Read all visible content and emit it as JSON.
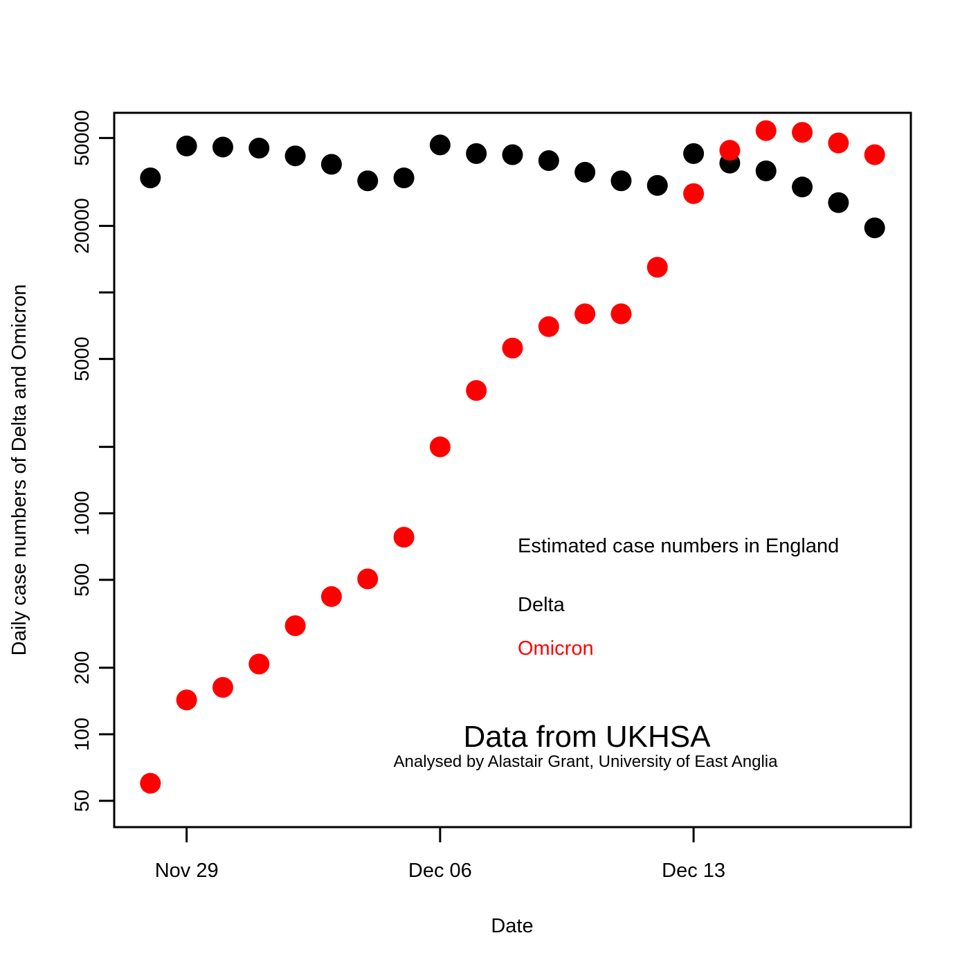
{
  "chart_data": {
    "type": "scatter",
    "title": "",
    "xlabel": "Date",
    "ylabel": "Daily case numbers of Delta and Omicron",
    "y_scale": "log",
    "ylim": [
      38,
      65000
    ],
    "xlim": [
      "2021-11-27",
      "2021-12-19"
    ],
    "x_ticks": [
      {
        "date": "2021-11-29",
        "label": "Nov 29"
      },
      {
        "date": "2021-12-06",
        "label": "Dec 06"
      },
      {
        "date": "2021-12-13",
        "label": "Dec 13"
      }
    ],
    "y_ticks": [
      {
        "value": 50,
        "label": "50"
      },
      {
        "value": 100,
        "label": "100"
      },
      {
        "value": 200,
        "label": "200"
      },
      {
        "value": 500,
        "label": "500"
      },
      {
        "value": 1000,
        "label": "1000"
      },
      {
        "value": 2000,
        "label": ""
      },
      {
        "value": 5000,
        "label": "5000"
      },
      {
        "value": 10000,
        "label": ""
      },
      {
        "value": 20000,
        "label": "20000"
      },
      {
        "value": 50000,
        "label": "50000"
      }
    ],
    "x": [
      "2021-11-28",
      "2021-11-29",
      "2021-11-30",
      "2021-12-01",
      "2021-12-02",
      "2021-12-03",
      "2021-12-04",
      "2021-12-05",
      "2021-12-06",
      "2021-12-07",
      "2021-12-08",
      "2021-12-09",
      "2021-12-10",
      "2021-12-11",
      "2021-12-12",
      "2021-12-13",
      "2021-12-14",
      "2021-12-15",
      "2021-12-16",
      "2021-12-17",
      "2021-12-18"
    ],
    "series": [
      {
        "name": "Delta",
        "color": "#000000",
        "values": [
          33000,
          46000,
          45500,
          45000,
          41500,
          38000,
          32000,
          33000,
          46500,
          42500,
          42000,
          39500,
          35000,
          32000,
          30500,
          42500,
          38500,
          35500,
          30000,
          25500,
          19600
        ]
      },
      {
        "name": "Omicron",
        "color": "#ff0000",
        "values": [
          60,
          143,
          163,
          208,
          310,
          420,
          505,
          780,
          2000,
          3600,
          5600,
          7000,
          8000,
          8000,
          13000,
          28000,
          44000,
          54000,
          53000,
          47500,
          42000
        ]
      }
    ],
    "legend": {
      "heading": "Estimated case numbers in England",
      "entries": [
        {
          "label": "Delta",
          "color": "#000000"
        },
        {
          "label": "Omicron",
          "color": "#ff0000"
        }
      ],
      "placement": "lower-right"
    },
    "annotations": {
      "source": "Data from UKHSA",
      "credit": "Analysed by Alastair Grant, University of East Anglia"
    },
    "grid": false
  }
}
